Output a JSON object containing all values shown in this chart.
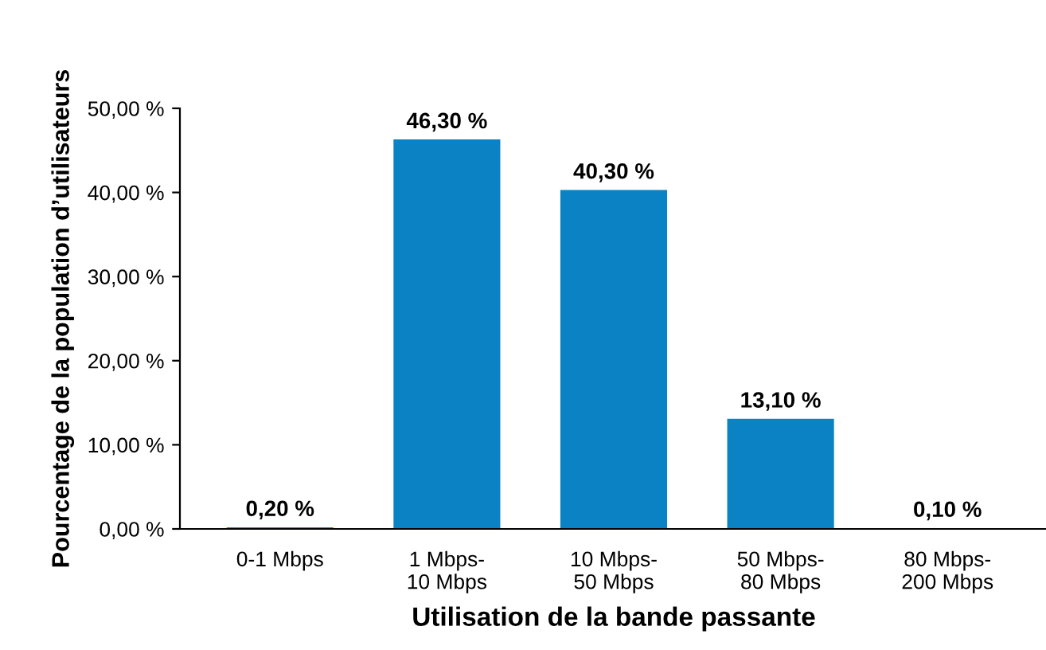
{
  "chart_data": {
    "type": "bar",
    "xlabel": "Utilisation de la bande passante",
    "ylabel": "Pourcentage de la population d’utilisateurs",
    "categories": [
      "0-1 Mbps",
      "1 Mbps-\n10 Mbps",
      "10 Mbps-\n50 Mbps",
      "50 Mbps-\n80 Mbps",
      "80 Mbps-\n200 Mbps"
    ],
    "values": [
      0.2,
      46.3,
      40.3,
      13.1,
      0.1
    ],
    "value_labels": [
      "0,20 %",
      "46,30 %",
      "40,30 %",
      "13,10 %",
      "0,10 %"
    ],
    "color": "#0a82c4",
    "ylim": [
      0,
      50
    ],
    "yticks": [
      {
        "value": 0,
        "label": "0,00 %"
      },
      {
        "value": 10,
        "label": "10,00 %"
      },
      {
        "value": 20,
        "label": "20,00 %"
      },
      {
        "value": 30,
        "label": "30,00 %"
      },
      {
        "value": 40,
        "label": "40,00 %"
      },
      {
        "value": 50,
        "label": "50,00 %"
      }
    ],
    "grid": false,
    "legend": false
  }
}
